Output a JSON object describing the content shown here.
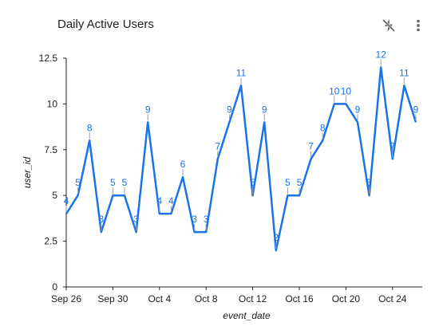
{
  "header": {
    "title": "Daily Active Users",
    "icons": [
      "lightning-off-icon",
      "more-vert-icon"
    ]
  },
  "chart_data": {
    "type": "line",
    "title": "Daily Active Users",
    "xlabel": "event_date",
    "ylabel": "user_id",
    "x_ticks": [
      "Sep 26",
      "Sep 30",
      "Oct 4",
      "Oct 8",
      "Oct 12",
      "Oct 16",
      "Oct 20",
      "Oct 24"
    ],
    "y_ticks": [
      "0",
      "2.5",
      "5",
      "7.5",
      "10",
      "12.5"
    ],
    "ylim": [
      0,
      12.5
    ],
    "grid": false,
    "x": [
      "Sep 26",
      "Sep 27",
      "Sep 28",
      "Sep 29",
      "Sep 30",
      "Oct 1",
      "Oct 2",
      "Oct 3",
      "Oct 4",
      "Oct 5",
      "Oct 6",
      "Oct 7",
      "Oct 8",
      "Oct 9",
      "Oct 10",
      "Oct 11",
      "Oct 12",
      "Oct 13",
      "Oct 14",
      "Oct 15",
      "Oct 16",
      "Oct 17",
      "Oct 18",
      "Oct 19",
      "Oct 20",
      "Oct 21",
      "Oct 22",
      "Oct 23",
      "Oct 24",
      "Oct 25",
      "Oct 26"
    ],
    "series": [
      {
        "values": [
          4,
          5,
          8,
          3,
          5,
          5,
          3,
          9,
          4,
          4,
          6,
          3,
          3,
          7,
          9,
          11,
          5,
          9,
          2,
          5,
          5,
          7,
          8,
          10,
          10,
          9,
          5,
          12,
          7,
          11,
          9
        ],
        "color": "#1a73e8"
      }
    ]
  }
}
